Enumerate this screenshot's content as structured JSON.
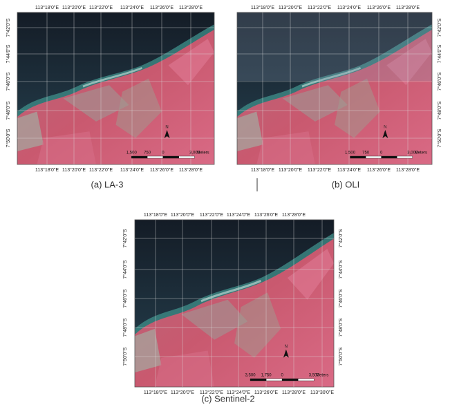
{
  "panels": [
    {
      "caption": "(a) LA-3",
      "top_labels": [
        "113°18'0\"E",
        "113°20'0\"E",
        "113°22'0\"E",
        "113°24'0\"E",
        "113°26'0\"E",
        "113°28'0\"E"
      ],
      "bottom_labels": [
        "113°18'0\"E",
        "113°20'0\"E",
        "113°22'0\"E",
        "113°24'0\"E",
        "113°26'0\"E",
        "113°28'0\"E"
      ],
      "left_labels": [
        "7°42'0\"S",
        "7°44'0\"S",
        "7°46'0\"S",
        "7°48'0\"S",
        "7°50'0\"S"
      ],
      "north": "N",
      "scale_labels": [
        "1,500",
        "750",
        "0",
        "3,000",
        "Meters"
      ]
    },
    {
      "caption": "(b) OLI",
      "top_labels": [
        "113°18'0\"E",
        "113°20'0\"E",
        "113°22'0\"E",
        "113°24'0\"E",
        "113°26'0\"E",
        "113°28'0\"E"
      ],
      "bottom_labels": [
        "113°18'0\"E",
        "113°20'0\"E",
        "113°22'0\"E",
        "113°24'0\"E",
        "113°26'0\"E",
        "113°28'0\"E"
      ],
      "right_labels": [
        "7°42'0\"S",
        "7°44'0\"S",
        "7°46'0\"S",
        "7°48'0\"S",
        "7°50'0\"S"
      ],
      "north": "N",
      "scale_labels": [
        "1,500",
        "750",
        "0",
        "3,000",
        "Meters"
      ]
    },
    {
      "caption": "(c)  Sentinel-2",
      "top_labels": [
        "113°18'0\"E",
        "113°20'0\"E",
        "113°22'0\"E",
        "113°24'0\"E",
        "113°26'0\"E",
        "113°28'0\"E"
      ],
      "bottom_labels": [
        "113°18'0\"E",
        "113°20'0\"E",
        "113°22'0\"E",
        "113°24'0\"E",
        "113°26'0\"E",
        "113°28'0\"E",
        "113°30'0\"E"
      ],
      "left_labels": [
        "7°42'0\"S",
        "7°44'0\"S",
        "7°46'0\"S",
        "7°48'0\"S",
        "7°50'0\"S"
      ],
      "right_labels": [
        "7°42'0\"S",
        "7°44'0\"S",
        "7°46'0\"S",
        "7°48'0\"S",
        "7°50'0\"S"
      ],
      "north": "N",
      "scale_labels": [
        "3,500",
        "1,750",
        "0",
        "3,500",
        "Meters"
      ]
    }
  ]
}
